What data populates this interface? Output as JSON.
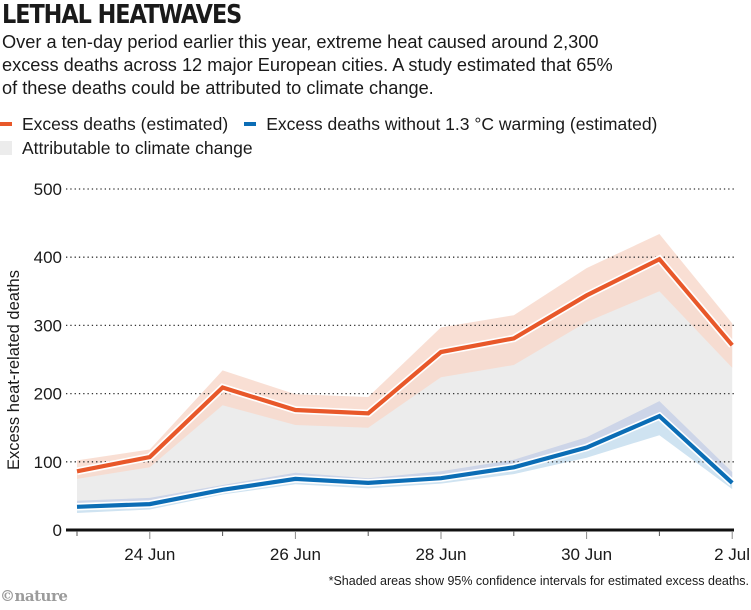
{
  "header": {
    "title": "LETHAL HEATWAVES",
    "subtitle": "Over a ten-day period earlier this year, extreme heat caused around 2,300 excess deaths across 12 major European cities. A study estimated that 65% of these deaths could be attributed to climate change."
  },
  "legend": {
    "items": [
      {
        "label": "Excess deaths (estimated)",
        "color": "#e8582a",
        "kind": "line"
      },
      {
        "label": "Excess deaths without 1.3 °C warming (estimated)",
        "color": "#0b6db5",
        "kind": "line"
      },
      {
        "label": "Attributable to climate change",
        "color": "#ececec",
        "kind": "area"
      }
    ]
  },
  "footnote": "*Shaded areas show 95% confidence intervals for estimated excess deaths.",
  "logo": "©nature",
  "colors": {
    "orange": "#e8582a",
    "orange_band": "#f8d9cd",
    "blue": "#0b6db5",
    "blue_band_upper": "#cdd5e8",
    "blue_band_lower": "#cfe3f1",
    "attributable": "#ececec",
    "grid": "#333333",
    "axis": "#111111"
  },
  "chart_data": {
    "type": "line",
    "title": "LETHAL HEATWAVES",
    "xlabel": "",
    "ylabel": "Excess heat-related deaths",
    "ylim": [
      0,
      500
    ],
    "yticks": [
      0,
      100,
      200,
      300,
      400,
      500
    ],
    "grid": true,
    "legend_position": "top-left",
    "x": [
      "23 Jun",
      "24 Jun",
      "25 Jun",
      "26 Jun",
      "27 Jun",
      "28 Jun",
      "29 Jun",
      "30 Jun",
      "1 Jul",
      "2 Jul"
    ],
    "xtick_labels": [
      {
        "index": 1,
        "label": "24 Jun"
      },
      {
        "index": 3,
        "label": "26 Jun"
      },
      {
        "index": 5,
        "label": "28 Jun"
      },
      {
        "index": 7,
        "label": "30 Jun"
      },
      {
        "index": 9,
        "label": "2 Jul"
      }
    ],
    "series": [
      {
        "name": "Excess deaths (estimated)",
        "values": [
          86,
          107,
          209,
          176,
          171,
          261,
          281,
          344,
          397,
          271
        ],
        "ci_upper": [
          102,
          118,
          234,
          199,
          195,
          297,
          315,
          384,
          434,
          303
        ],
        "ci_lower": [
          75,
          92,
          183,
          154,
          150,
          224,
          242,
          305,
          350,
          238
        ]
      },
      {
        "name": "Excess deaths without 1.3 °C warming (estimated)",
        "values": [
          34,
          38,
          59,
          75,
          69,
          76,
          92,
          121,
          167,
          69
        ],
        "ci_upper": [
          43,
          47,
          66,
          84,
          76,
          86,
          103,
          136,
          189,
          85
        ],
        "ci_lower": [
          25,
          30,
          52,
          67,
          61,
          68,
          82,
          106,
          139,
          60
        ]
      }
    ],
    "area": {
      "name": "Attributable to climate change",
      "between": [
        "Excess deaths without 1.3 °C warming (estimated)",
        "Excess deaths (estimated)"
      ]
    },
    "annotations": [
      "*Shaded areas show 95% confidence intervals for estimated excess deaths."
    ]
  }
}
